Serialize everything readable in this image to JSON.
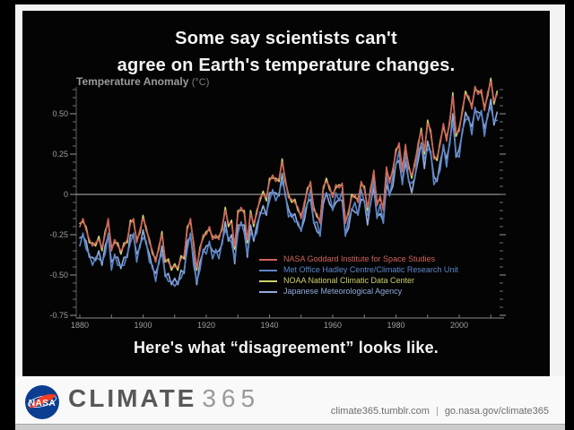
{
  "title": {
    "line1": "Some say scientists can't",
    "line2": "agree on Earth's temperature changes."
  },
  "tagline": "Here's what “disagreement” looks like.",
  "axis_title": {
    "text": "Temperature Anomaly",
    "unit": "(°C)"
  },
  "footer": {
    "brand": "CLIMATE",
    "brand_number": "365",
    "url_left": "climate365.tumblr.com",
    "separator": "|",
    "url_right": "go.nasa.gov/climate365",
    "logo_text": "NASA"
  },
  "colors": {
    "background": "#000000",
    "panel": "#040404",
    "frame_white": "#f3f3f3",
    "axis_text": "#9f9f9f",
    "zero_line": "#969696",
    "nasa_blue": "#0b3d91",
    "nasa_red": "#fc3d21",
    "giss_red": "#d0635b",
    "met_blue": "#5b86c8",
    "noaa_yellow": "#ccd069",
    "jma_lightblue": "#92abdd"
  },
  "chart_data": {
    "type": "line",
    "title": "Temperature Anomaly (°C)",
    "xlabel": "",
    "ylabel": "Temperature Anomaly (°C)",
    "xlim": [
      1880,
      2013
    ],
    "ylim": [
      -0.77,
      0.67
    ],
    "grid": false,
    "zero_baseline": true,
    "legend_position": "inside-bottom-right",
    "x_ticks": [
      {
        "label": "1880",
        "value": 1880
      },
      {
        "label": "1900",
        "value": 1900
      },
      {
        "label": "1920",
        "value": 1920
      },
      {
        "label": "1940",
        "value": 1940
      },
      {
        "label": "1960",
        "value": 1960
      },
      {
        "label": "1980",
        "value": 1980
      },
      {
        "label": "2000",
        "value": 2000
      }
    ],
    "y_ticks": [
      {
        "label": "0.50",
        "value": 0.5
      },
      {
        "label": "0.25",
        "value": 0.25
      },
      {
        "label": "0",
        "value": 0
      },
      {
        "label": "-0.25",
        "value": -0.25
      },
      {
        "label": "-0.50",
        "value": -0.5
      },
      {
        "label": "-0.75",
        "value": -0.75
      }
    ],
    "years": [
      1880,
      1881,
      1882,
      1883,
      1884,
      1885,
      1886,
      1887,
      1888,
      1889,
      1890,
      1891,
      1892,
      1893,
      1894,
      1895,
      1896,
      1897,
      1898,
      1899,
      1900,
      1901,
      1902,
      1903,
      1904,
      1905,
      1906,
      1907,
      1908,
      1909,
      1910,
      1911,
      1912,
      1913,
      1914,
      1915,
      1916,
      1917,
      1918,
      1919,
      1920,
      1921,
      1922,
      1923,
      1924,
      1925,
      1926,
      1927,
      1928,
      1929,
      1930,
      1931,
      1932,
      1933,
      1934,
      1935,
      1936,
      1937,
      1938,
      1939,
      1940,
      1941,
      1942,
      1943,
      1944,
      1945,
      1946,
      1947,
      1948,
      1949,
      1950,
      1951,
      1952,
      1953,
      1954,
      1955,
      1956,
      1957,
      1958,
      1959,
      1960,
      1961,
      1962,
      1963,
      1964,
      1965,
      1966,
      1967,
      1968,
      1969,
      1970,
      1971,
      1972,
      1973,
      1974,
      1975,
      1976,
      1977,
      1978,
      1979,
      1980,
      1981,
      1982,
      1983,
      1984,
      1985,
      1986,
      1987,
      1988,
      1989,
      1990,
      1991,
      1992,
      1993,
      1994,
      1995,
      1996,
      1997,
      1998,
      1999,
      2000,
      2001,
      2002,
      2003,
      2004,
      2005,
      2006,
      2007,
      2008,
      2009,
      2010,
      2011,
      2012
    ],
    "series": [
      {
        "name": "NASA Goddard Institute for Space Studies",
        "color": "#d0635b",
        "values": [
          -0.2,
          -0.15,
          -0.22,
          -0.28,
          -0.32,
          -0.3,
          -0.28,
          -0.33,
          -0.25,
          -0.15,
          -0.35,
          -0.28,
          -0.32,
          -0.35,
          -0.32,
          -0.28,
          -0.18,
          -0.15,
          -0.3,
          -0.22,
          -0.15,
          -0.2,
          -0.3,
          -0.35,
          -0.42,
          -0.32,
          -0.25,
          -0.4,
          -0.42,
          -0.45,
          -0.45,
          -0.45,
          -0.4,
          -0.38,
          -0.22,
          -0.15,
          -0.32,
          -0.45,
          -0.35,
          -0.25,
          -0.25,
          -0.2,
          -0.28,
          -0.25,
          -0.28,
          -0.2,
          -0.1,
          -0.18,
          -0.18,
          -0.32,
          -0.12,
          -0.08,
          -0.12,
          -0.28,
          -0.12,
          -0.18,
          -0.12,
          -0.02,
          0.0,
          -0.02,
          0.08,
          0.12,
          0.08,
          0.1,
          0.2,
          0.1,
          -0.02,
          -0.03,
          -0.05,
          -0.08,
          -0.15,
          -0.05,
          0.02,
          0.08,
          -0.1,
          -0.12,
          -0.18,
          0.05,
          0.08,
          0.05,
          -0.02,
          0.06,
          0.04,
          0.07,
          -0.18,
          -0.1,
          -0.02,
          0.0,
          -0.05,
          0.08,
          0.03,
          -0.08,
          0.02,
          0.15,
          -0.07,
          -0.01,
          -0.1,
          0.17,
          0.07,
          0.16,
          0.26,
          0.32,
          0.14,
          0.31,
          0.16,
          0.12,
          0.18,
          0.32,
          0.39,
          0.27,
          0.44,
          0.4,
          0.22,
          0.23,
          0.31,
          0.44,
          0.33,
          0.46,
          0.61,
          0.38,
          0.39,
          0.53,
          0.62,
          0.61,
          0.53,
          0.67,
          0.62,
          0.65,
          0.52,
          0.63,
          0.7,
          0.58,
          0.62
        ]
      },
      {
        "name": "Met Office Hadley Centre/Climatic Research Unit",
        "color": "#5b86c8",
        "values": [
          -0.32,
          -0.24,
          -0.34,
          -0.37,
          -0.44,
          -0.39,
          -0.4,
          -0.42,
          -0.37,
          -0.24,
          -0.47,
          -0.37,
          -0.44,
          -0.44,
          -0.44,
          -0.37,
          -0.3,
          -0.24,
          -0.42,
          -0.31,
          -0.27,
          -0.29,
          -0.42,
          -0.44,
          -0.54,
          -0.41,
          -0.37,
          -0.49,
          -0.54,
          -0.54,
          -0.57,
          -0.54,
          -0.52,
          -0.47,
          -0.34,
          -0.24,
          -0.44,
          -0.54,
          -0.47,
          -0.34,
          -0.37,
          -0.29,
          -0.4,
          -0.34,
          -0.4,
          -0.29,
          -0.22,
          -0.27,
          -0.3,
          -0.41,
          -0.24,
          -0.17,
          -0.24,
          -0.37,
          -0.24,
          -0.27,
          -0.24,
          -0.11,
          -0.12,
          -0.11,
          -0.04,
          0.03,
          -0.04,
          0.01,
          0.08,
          0.01,
          -0.14,
          -0.12,
          -0.17,
          -0.17,
          -0.23,
          -0.1,
          -0.06,
          0.03,
          -0.18,
          -0.17,
          -0.26,
          0.0,
          0.0,
          0.0,
          -0.1,
          0.01,
          -0.04,
          0.02,
          -0.26,
          -0.15,
          -0.1,
          -0.05,
          -0.13,
          0.03,
          -0.05,
          -0.13,
          -0.06,
          0.1,
          -0.15,
          -0.06,
          -0.18,
          0.12,
          -0.01,
          0.11,
          0.18,
          0.27,
          0.06,
          0.26,
          0.08,
          0.07,
          0.1,
          0.27,
          0.31,
          0.22,
          0.28,
          0.27,
          0.06,
          0.1,
          0.15,
          0.31,
          0.17,
          0.33,
          0.45,
          0.25,
          0.23,
          0.4,
          0.46,
          0.48,
          0.37,
          0.54,
          0.46,
          0.52,
          0.36,
          0.5,
          0.54,
          0.45,
          0.46
        ]
      },
      {
        "name": "NOAA National Climatic Data Center",
        "color": "#ccd069",
        "values": [
          -0.18,
          -0.17,
          -0.2,
          -0.3,
          -0.3,
          -0.32,
          -0.26,
          -0.35,
          -0.23,
          -0.17,
          -0.33,
          -0.3,
          -0.3,
          -0.37,
          -0.3,
          -0.3,
          -0.16,
          -0.17,
          -0.28,
          -0.24,
          -0.13,
          -0.22,
          -0.28,
          -0.37,
          -0.4,
          -0.34,
          -0.23,
          -0.42,
          -0.4,
          -0.47,
          -0.43,
          -0.47,
          -0.38,
          -0.4,
          -0.2,
          -0.17,
          -0.3,
          -0.47,
          -0.33,
          -0.27,
          -0.23,
          -0.22,
          -0.26,
          -0.27,
          -0.26,
          -0.22,
          -0.08,
          -0.2,
          -0.16,
          -0.34,
          -0.1,
          -0.1,
          -0.1,
          -0.3,
          -0.1,
          -0.2,
          -0.1,
          -0.04,
          0.02,
          -0.04,
          0.1,
          0.1,
          0.1,
          0.08,
          0.22,
          0.08,
          0.0,
          -0.05,
          -0.03,
          -0.1,
          -0.13,
          -0.07,
          0.04,
          0.06,
          -0.08,
          -0.14,
          -0.16,
          0.03,
          0.1,
          0.03,
          0.0,
          0.04,
          0.06,
          0.05,
          -0.16,
          -0.12,
          0.0,
          -0.02,
          -0.03,
          0.06,
          0.05,
          -0.1,
          0.04,
          0.13,
          -0.05,
          -0.03,
          -0.08,
          0.15,
          0.09,
          0.14,
          0.28,
          0.3,
          0.16,
          0.29,
          0.18,
          0.1,
          0.2,
          0.3,
          0.41,
          0.25,
          0.46,
          0.38,
          0.24,
          0.21,
          0.33,
          0.42,
          0.35,
          0.44,
          0.63,
          0.36,
          0.41,
          0.51,
          0.64,
          0.59,
          0.55,
          0.65,
          0.64,
          0.63,
          0.54,
          0.61,
          0.72,
          0.56,
          0.64
        ]
      },
      {
        "name": "Japanese Meteorological Agency",
        "color": "#92abdd",
        "values": [
          -0.27,
          -0.26,
          -0.29,
          -0.39,
          -0.39,
          -0.41,
          -0.35,
          -0.44,
          -0.32,
          -0.26,
          -0.42,
          -0.39,
          -0.39,
          -0.46,
          -0.39,
          -0.39,
          -0.25,
          -0.26,
          -0.37,
          -0.33,
          -0.22,
          -0.31,
          -0.37,
          -0.46,
          -0.49,
          -0.43,
          -0.32,
          -0.51,
          -0.49,
          -0.56,
          -0.52,
          -0.56,
          -0.47,
          -0.49,
          -0.29,
          -0.26,
          -0.39,
          -0.56,
          -0.42,
          -0.36,
          -0.32,
          -0.31,
          -0.35,
          -0.36,
          -0.35,
          -0.31,
          -0.17,
          -0.29,
          -0.25,
          -0.43,
          -0.19,
          -0.19,
          -0.19,
          -0.39,
          -0.19,
          -0.29,
          -0.19,
          -0.13,
          -0.07,
          -0.13,
          0.01,
          0.01,
          0.01,
          -0.01,
          0.13,
          -0.01,
          -0.09,
          -0.14,
          -0.12,
          -0.19,
          -0.22,
          -0.16,
          -0.05,
          -0.03,
          -0.17,
          -0.23,
          -0.25,
          -0.06,
          0.01,
          -0.06,
          -0.09,
          -0.05,
          -0.03,
          -0.04,
          -0.25,
          -0.21,
          -0.09,
          -0.11,
          -0.12,
          -0.03,
          -0.04,
          -0.19,
          -0.05,
          0.04,
          -0.14,
          -0.12,
          -0.17,
          0.06,
          0.0,
          0.05,
          0.19,
          0.21,
          0.07,
          0.2,
          0.09,
          0.01,
          0.11,
          0.21,
          0.32,
          0.16,
          0.33,
          0.25,
          0.11,
          0.08,
          0.2,
          0.29,
          0.22,
          0.31,
          0.5,
          0.23,
          0.28,
          0.38,
          0.51,
          0.46,
          0.42,
          0.52,
          0.51,
          0.5,
          0.41,
          0.48,
          0.59,
          0.43,
          0.51
        ]
      }
    ]
  }
}
